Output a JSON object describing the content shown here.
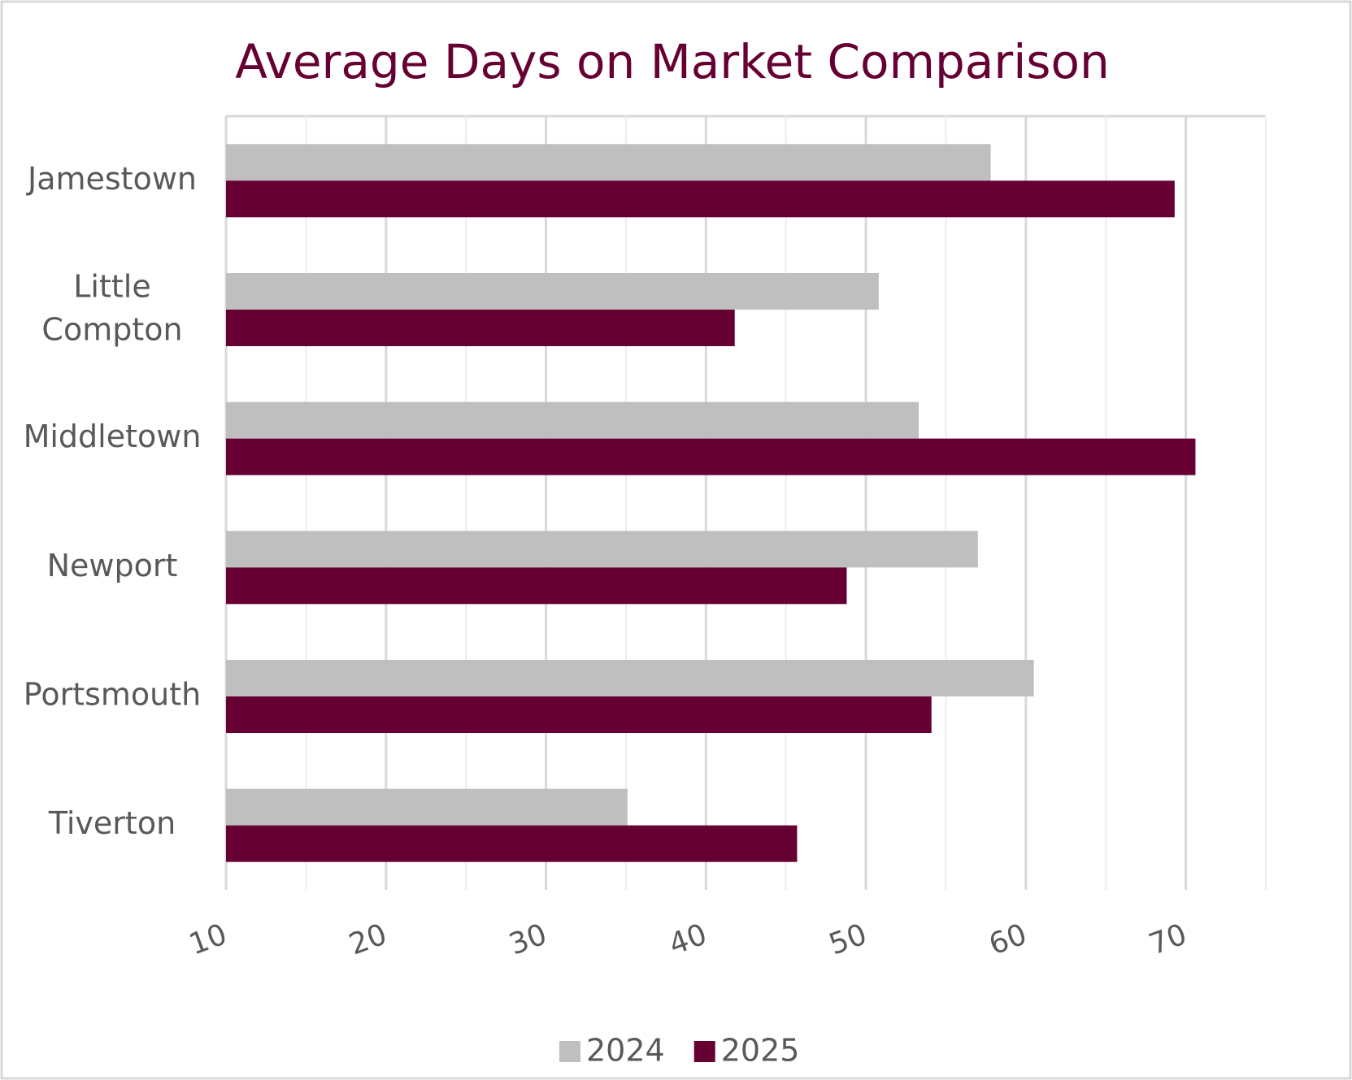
{
  "chart_data": {
    "type": "hbar",
    "title": "Average Days on Market Comparison",
    "categories": [
      "Jamestown",
      "Little Compton",
      "Middletown",
      "Newport",
      "Portsmouth",
      "Tiverton"
    ],
    "series": [
      {
        "name": "2024",
        "color": "#bfbfbf",
        "values": [
          57.8,
          50.8,
          53.3,
          57.0,
          60.5,
          35.1
        ]
      },
      {
        "name": "2025",
        "color": "#660033",
        "values": [
          69.3,
          41.8,
          70.6,
          48.8,
          54.1,
          45.7
        ]
      }
    ],
    "xlim": [
      10,
      75
    ],
    "xticks": [
      10,
      20,
      30,
      40,
      50,
      60,
      70
    ],
    "xminorticks": [
      15,
      25,
      35,
      45,
      55,
      65,
      75
    ],
    "grid": true,
    "legend": "bottom"
  }
}
